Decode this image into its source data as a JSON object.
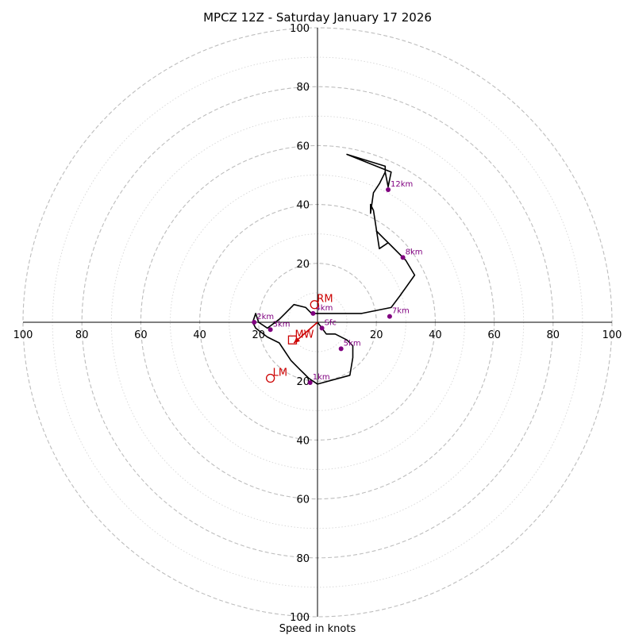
{
  "chart_data": {
    "type": "hodograph",
    "title": "MPCZ 12Z - Saturday January 17 2026",
    "xlabel": "Speed in knots",
    "max_speed": 100,
    "ring_major_step": 20,
    "ring_minor_step": 10,
    "x_tick_labels_left": [
      "100",
      "80",
      "60",
      "40",
      "20"
    ],
    "x_tick_labels_right": [
      "20",
      "40",
      "60",
      "80",
      "100"
    ],
    "y_tick_labels_up": [
      "20",
      "40",
      "60",
      "80",
      "100"
    ],
    "y_tick_labels_down": [
      "20",
      "40",
      "60",
      "80",
      "100"
    ],
    "trace": [
      [
        0,
        0
      ],
      [
        1.5,
        -2
      ],
      [
        3,
        -4
      ],
      [
        6,
        -4
      ],
      [
        10,
        -6
      ],
      [
        12,
        -8
      ],
      [
        12,
        -12
      ],
      [
        11,
        -18
      ],
      [
        0,
        -21
      ],
      [
        -3,
        -19
      ],
      [
        -6,
        -16
      ],
      [
        -9,
        -13
      ],
      [
        -13,
        -7
      ],
      [
        -17,
        -5
      ],
      [
        -21,
        -2
      ],
      [
        -22,
        0
      ],
      [
        -21,
        3
      ],
      [
        -20,
        0
      ],
      [
        -17,
        -2
      ],
      [
        -13,
        1
      ],
      [
        -11,
        3
      ],
      [
        -8,
        6
      ],
      [
        -4,
        5
      ],
      [
        -2,
        3
      ],
      [
        2,
        3
      ],
      [
        15,
        3
      ],
      [
        25,
        5
      ],
      [
        28,
        9
      ],
      [
        33,
        16
      ],
      [
        30,
        21
      ],
      [
        25,
        26
      ],
      [
        22,
        29
      ],
      [
        20,
        31
      ],
      [
        24,
        27
      ],
      [
        21,
        25
      ],
      [
        19,
        38
      ],
      [
        18,
        40
      ],
      [
        18,
        37
      ],
      [
        19,
        44
      ],
      [
        21,
        47
      ],
      [
        23,
        51
      ],
      [
        23,
        53
      ],
      [
        10,
        57
      ],
      [
        20,
        53
      ],
      [
        25,
        51
      ],
      [
        24,
        46
      ],
      [
        23,
        51
      ]
    ],
    "height_markers": [
      {
        "label": "Sfc",
        "u": 1.5,
        "v": -2
      },
      {
        "label": "1km",
        "u": -2.5,
        "v": -20.5
      },
      {
        "label": "2km",
        "u": -21.5,
        "v": 0
      },
      {
        "label": "3km",
        "u": -16,
        "v": -2.5
      },
      {
        "label": "4km",
        "u": -1.5,
        "v": 3
      },
      {
        "label": "5km",
        "u": 8,
        "v": -9
      },
      {
        "label": "7km",
        "u": 24.5,
        "v": 2
      },
      {
        "label": "8km",
        "u": 29,
        "v": 22
      },
      {
        "label": "12km",
        "u": 24,
        "v": 45
      }
    ],
    "storm_motion": [
      {
        "label": "RM",
        "u": -1,
        "v": 6,
        "marker": "circle"
      },
      {
        "label": "LM",
        "u": -16,
        "v": -19,
        "marker": "circle"
      },
      {
        "label": "MW",
        "u": -8.5,
        "v": -6,
        "marker": "square"
      }
    ],
    "mean_wind_arrow": {
      "u": -8,
      "v": -7
    },
    "colors": {
      "trace": "#000000",
      "marker": "#800080",
      "motion": "#cc0000",
      "grid": "#bdbdbd",
      "axis": "#000000"
    }
  }
}
